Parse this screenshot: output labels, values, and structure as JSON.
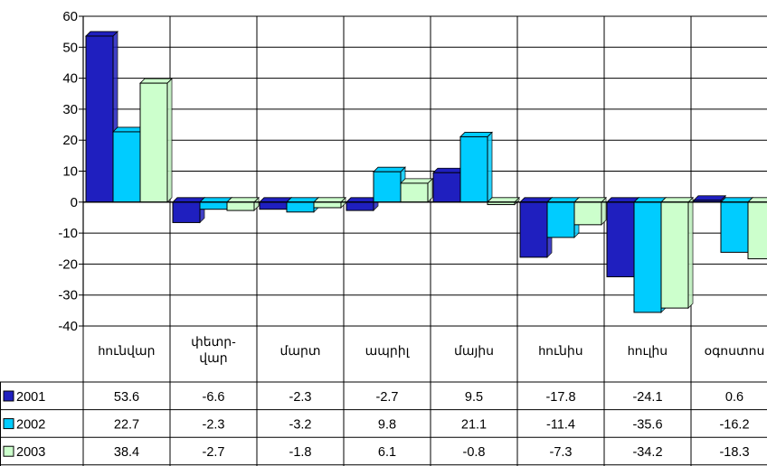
{
  "chart_data": {
    "type": "bar",
    "categories": [
      "hունվար",
      "փետր-\nվար",
      "մարտ",
      "ապրիլ",
      "մայիս",
      "hունիս",
      "hուլիս",
      "օգոստոս"
    ],
    "series": [
      {
        "name": "2001",
        "values": [
          53.6,
          -6.6,
          -2.3,
          -2.7,
          9.5,
          -17.8,
          -24.1,
          0.6
        ],
        "color": "#1f1fbf",
        "label_texts": [
          "53.6",
          "-6.6",
          "-2.3",
          "-2.7",
          "9.5",
          "-17.8",
          "-24.1",
          "0.6"
        ]
      },
      {
        "name": "2002",
        "values": [
          22.7,
          -2.3,
          -3.2,
          9.8,
          21.1,
          -11.4,
          -35.6,
          -16.2
        ],
        "color": "#00ccff",
        "label_texts": [
          "22.7",
          "-2.3",
          "-3.2",
          "9.8",
          "21.1",
          "-11.4",
          "-35.6",
          "-16.2"
        ]
      },
      {
        "name": "2003",
        "values": [
          38.4,
          -2.7,
          -1.8,
          6.1,
          -0.8,
          -7.3,
          -34.2,
          -18.3
        ],
        "color": "#ccffcc",
        "label_texts": [
          "38.4",
          "-2.7",
          "-1.8",
          "6.1",
          "-0.8",
          "-7.3",
          "-34.2",
          "-18.3"
        ]
      }
    ],
    "yticks": [
      "60",
      "50",
      "40",
      "30",
      "20",
      "10",
      "0",
      "-10",
      "-20",
      "-30",
      "-40"
    ],
    "ylim": [
      -40,
      60
    ],
    "grid": true,
    "legend": "data-table",
    "title": "",
    "xlabel": "",
    "ylabel": ""
  }
}
